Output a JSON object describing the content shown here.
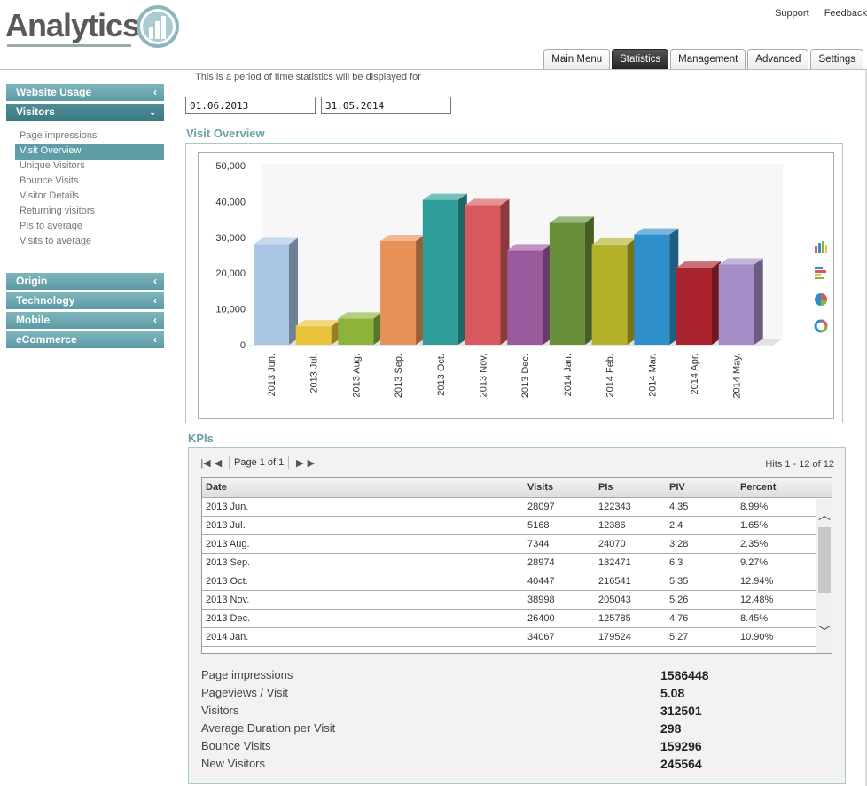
{
  "header": {
    "logo_text": "Analytics",
    "links": [
      "Support",
      "Feedback"
    ]
  },
  "tabs": [
    {
      "label": "Main Menu",
      "active": false
    },
    {
      "label": "Statistics",
      "active": true
    },
    {
      "label": "Management",
      "active": false
    },
    {
      "label": "Advanced",
      "active": false
    },
    {
      "label": "Settings",
      "active": false
    }
  ],
  "sidebar": {
    "website_usage": "Website Usage",
    "visitors": "Visitors",
    "visitors_items": [
      "Page impressions",
      "Visit Overview",
      "Unique Visitors",
      "Bounce Visits",
      "Visitor Details",
      "Returning visitors",
      "PIs to average",
      "Visits to average"
    ],
    "selected_item": "Visit Overview",
    "origin": "Origin",
    "technology": "Technology",
    "mobile": "Mobile",
    "ecommerce": "eCommerce",
    "chevron_collapsed": "‹",
    "chevron_open": "⌄"
  },
  "period": {
    "text": "This is a period of time statistics will be displayed for",
    "from": "01.06.2013",
    "to": "31.05.2014"
  },
  "visit_overview_title": "Visit Overview",
  "chart_data": {
    "type": "bar",
    "categories": [
      "2013 Jun.",
      "2013 Jul.",
      "2013 Aug.",
      "2013 Sep.",
      "2013 Oct.",
      "2013 Nov.",
      "2013 Dec.",
      "2014 Jan.",
      "2014 Feb.",
      "2014 Mar.",
      "2014 Apr.",
      "2014 May."
    ],
    "values": [
      28097,
      5168,
      7344,
      28974,
      40447,
      38998,
      26400,
      34067,
      28000,
      30800,
      21500,
      22400
    ],
    "colors": [
      "#a9c6e4",
      "#e8c23a",
      "#8cb43a",
      "#e8925a",
      "#2f9e9a",
      "#d9595e",
      "#9b5a9e",
      "#6a8f3a",
      "#b3b02a",
      "#2f8fca",
      "#a9242e",
      "#a58cc6"
    ],
    "yticks": [
      "50,000",
      "40,000",
      "30,000",
      "20,000",
      "10,000",
      "0"
    ],
    "ylim": [
      0,
      50000
    ],
    "grid": false,
    "legend": "none"
  },
  "chart_icons": [
    "bar-chart-icon",
    "horizontal-bar-icon",
    "pie-chart-icon",
    "donut-chart-icon"
  ],
  "kpis_title": "KPIs",
  "pager": {
    "page_text": "Page 1 of 1",
    "hits_text": "Hits 1 - 12 of 12"
  },
  "table": {
    "columns": [
      "Date",
      "Visits",
      "PIs",
      "PIV",
      "Percent"
    ],
    "rows": [
      [
        "2013 Jun.",
        "28097",
        "122343",
        "4.35",
        "8.99%"
      ],
      [
        "2013 Jul.",
        "5168",
        "12386",
        "2.4",
        "1.65%"
      ],
      [
        "2013 Aug.",
        "7344",
        "24070",
        "3.28",
        "2.35%"
      ],
      [
        "2013 Sep.",
        "28974",
        "182471",
        "6.3",
        "9.27%"
      ],
      [
        "2013 Oct.",
        "40447",
        "216541",
        "5.35",
        "12.94%"
      ],
      [
        "2013 Nov.",
        "38998",
        "205043",
        "5.26",
        "12.48%"
      ],
      [
        "2013 Dec.",
        "26400",
        "125785",
        "4.76",
        "8.45%"
      ],
      [
        "2014 Jan.",
        "34067",
        "179524",
        "5.27",
        "10.90%"
      ]
    ]
  },
  "summary": [
    {
      "label": "Page impressions",
      "value": "1586448"
    },
    {
      "label": "Pageviews / Visit",
      "value": "5.08"
    },
    {
      "label": "Visitors",
      "value": "312501"
    },
    {
      "label": "Average Duration per Visit",
      "value": "298"
    },
    {
      "label": "Bounce Visits",
      "value": "159296"
    },
    {
      "label": "New Visitors",
      "value": "245564"
    }
  ]
}
